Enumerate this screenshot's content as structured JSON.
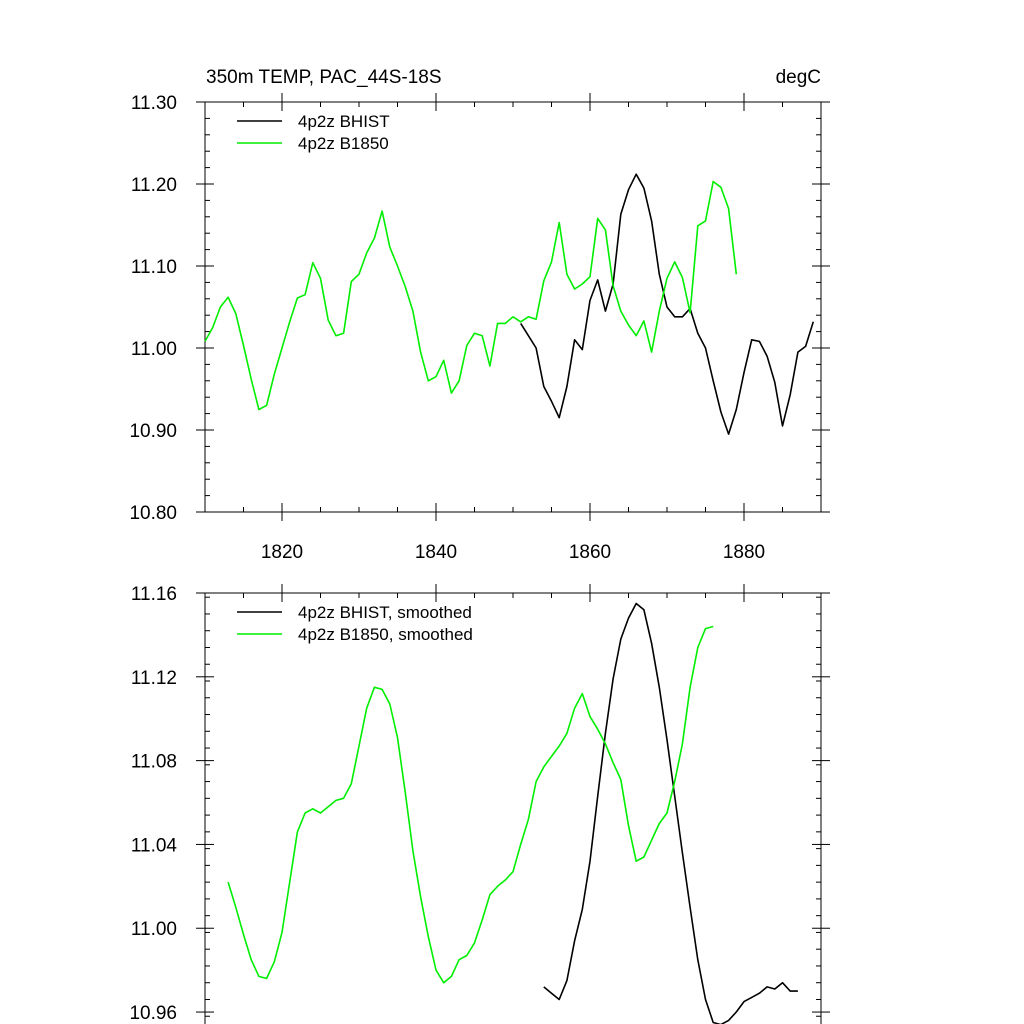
{
  "figure": {
    "title_left": "350m TEMP, PAC_44S-18S",
    "title_right": "degC"
  },
  "chart_data": [
    {
      "id": "top",
      "type": "line",
      "title": "350m TEMP, PAC_44S-18S",
      "units": "degC",
      "xlabel": "",
      "ylabel": "",
      "xlim": [
        1810,
        1890
      ],
      "ylim": [
        10.8,
        11.3
      ],
      "x_ticks": [
        1820,
        1840,
        1860,
        1880
      ],
      "x_tick_labels": [
        "1820",
        "1840",
        "1860",
        "1880"
      ],
      "y_ticks": [
        10.8,
        10.9,
        11.0,
        11.1,
        11.2,
        11.3
      ],
      "y_tick_labels": [
        "10.80",
        "10.90",
        "11.00",
        "11.10",
        "11.20",
        "11.30"
      ],
      "legend_position": "top-left",
      "series": [
        {
          "name": "4p2z BHIST",
          "color": "#000000",
          "x": [
            1851,
            1852,
            1853,
            1854,
            1855,
            1856,
            1857,
            1858,
            1859,
            1860,
            1861,
            1862,
            1863,
            1864,
            1865,
            1866,
            1867,
            1868,
            1869,
            1870,
            1871,
            1872,
            1873,
            1874,
            1875,
            1876,
            1877,
            1878,
            1879,
            1880,
            1881,
            1882,
            1883,
            1884,
            1885,
            1886,
            1887,
            1888,
            1889
          ],
          "values": [
            11.03,
            11.015,
            11.0,
            10.953,
            10.935,
            10.915,
            10.953,
            11.01,
            10.998,
            11.058,
            11.083,
            11.045,
            11.078,
            11.163,
            11.193,
            11.212,
            11.195,
            11.155,
            11.09,
            11.05,
            11.038,
            11.038,
            11.048,
            11.018,
            11.0,
            10.96,
            10.922,
            10.895,
            10.925,
            10.97,
            11.01,
            11.008,
            10.99,
            10.958,
            10.905,
            10.943,
            10.995,
            11.002,
            11.032
          ]
        },
        {
          "name": "4p2z B1850",
          "color": "#00ee00",
          "x": [
            1810,
            1811,
            1812,
            1813,
            1814,
            1815,
            1816,
            1817,
            1818,
            1819,
            1820,
            1821,
            1822,
            1823,
            1824,
            1825,
            1826,
            1827,
            1828,
            1829,
            1830,
            1831,
            1832,
            1833,
            1834,
            1835,
            1836,
            1837,
            1838,
            1839,
            1840,
            1841,
            1842,
            1843,
            1844,
            1845,
            1846,
            1847,
            1848,
            1849,
            1850,
            1851,
            1852,
            1853,
            1854,
            1855,
            1856,
            1857,
            1858,
            1859,
            1860,
            1861,
            1862,
            1863,
            1864,
            1865,
            1866,
            1867,
            1868,
            1869,
            1870,
            1871,
            1872,
            1873,
            1874,
            1875,
            1876,
            1877,
            1878,
            1879
          ],
          "values": [
            11.008,
            11.025,
            11.05,
            11.062,
            11.042,
            11.003,
            10.962,
            10.925,
            10.93,
            10.968,
            11.0,
            11.032,
            11.061,
            11.065,
            11.104,
            11.085,
            11.034,
            11.015,
            11.018,
            11.081,
            11.09,
            11.116,
            11.134,
            11.167,
            11.123,
            11.1,
            11.075,
            11.045,
            10.995,
            10.96,
            10.965,
            10.985,
            10.945,
            10.96,
            11.003,
            11.018,
            11.015,
            10.978,
            11.03,
            11.03,
            11.038,
            11.032,
            11.038,
            11.035,
            11.082,
            11.105,
            11.153,
            11.09,
            11.072,
            11.078,
            11.087,
            11.158,
            11.144,
            11.076,
            11.045,
            11.028,
            11.015,
            11.033,
            10.995,
            11.045,
            11.085,
            11.105,
            11.086,
            11.043,
            11.149,
            11.155,
            11.203,
            11.196,
            11.17,
            11.09
          ]
        }
      ]
    },
    {
      "id": "bottom",
      "type": "line",
      "title": "",
      "xlabel": "",
      "ylabel": "",
      "xlim": [
        1810,
        1890
      ],
      "ylim": [
        10.95,
        11.16
      ],
      "x_ticks": [
        1820,
        1840,
        1860,
        1880
      ],
      "y_ticks": [
        10.96,
        11.0,
        11.04,
        11.08,
        11.12,
        11.16
      ],
      "y_tick_labels": [
        "10.96",
        "11.00",
        "11.04",
        "11.08",
        "11.12",
        "11.16"
      ],
      "legend_position": "top-left",
      "series": [
        {
          "name": "4p2z BHIST, smoothed",
          "color": "#000000",
          "x": [
            1854,
            1855,
            1856,
            1857,
            1858,
            1859,
            1860,
            1861,
            1862,
            1863,
            1864,
            1865,
            1866,
            1867,
            1868,
            1869,
            1870,
            1871,
            1872,
            1873,
            1874,
            1875,
            1876,
            1877,
            1878,
            1879,
            1880,
            1881,
            1882,
            1883,
            1884,
            1885,
            1886,
            1887
          ],
          "values": [
            10.972,
            10.969,
            10.966,
            10.975,
            10.994,
            11.009,
            11.032,
            11.063,
            11.093,
            11.119,
            11.138,
            11.148,
            11.155,
            11.152,
            11.136,
            11.115,
            11.09,
            11.063,
            11.036,
            11.01,
            10.985,
            10.966,
            10.955,
            10.954,
            10.956,
            10.96,
            10.965,
            10.967,
            10.969,
            10.972,
            10.971,
            10.974,
            10.97,
            10.97
          ]
        },
        {
          "name": "4p2z B1850, smoothed",
          "color": "#00ee00",
          "x": [
            1813,
            1814,
            1815,
            1816,
            1817,
            1818,
            1819,
            1820,
            1821,
            1822,
            1823,
            1824,
            1825,
            1826,
            1827,
            1828,
            1829,
            1830,
            1831,
            1832,
            1833,
            1834,
            1835,
            1836,
            1837,
            1838,
            1839,
            1840,
            1841,
            1842,
            1843,
            1844,
            1845,
            1846,
            1847,
            1848,
            1849,
            1850,
            1851,
            1852,
            1853,
            1854,
            1855,
            1856,
            1857,
            1858,
            1859,
            1860,
            1861,
            1862,
            1863,
            1864,
            1865,
            1866,
            1867,
            1868,
            1869,
            1870,
            1871,
            1872,
            1873,
            1874,
            1875,
            1876
          ],
          "values": [
            11.022,
            11.01,
            10.997,
            10.985,
            10.977,
            10.976,
            10.984,
            10.998,
            11.022,
            11.046,
            11.055,
            11.057,
            11.055,
            11.058,
            11.061,
            11.062,
            11.069,
            11.087,
            11.105,
            11.115,
            11.114,
            11.107,
            11.091,
            11.065,
            11.037,
            11.015,
            10.996,
            10.98,
            10.974,
            10.977,
            10.985,
            10.987,
            10.993,
            11.004,
            11.016,
            11.02,
            11.023,
            11.027,
            11.04,
            11.052,
            11.07,
            11.077,
            11.082,
            11.087,
            11.093,
            11.105,
            11.112,
            11.101,
            11.095,
            11.088,
            11.079,
            11.071,
            11.049,
            11.032,
            11.034,
            11.042,
            11.05,
            11.055,
            11.07,
            11.088,
            11.115,
            11.134,
            11.143,
            11.144
          ]
        }
      ]
    }
  ]
}
